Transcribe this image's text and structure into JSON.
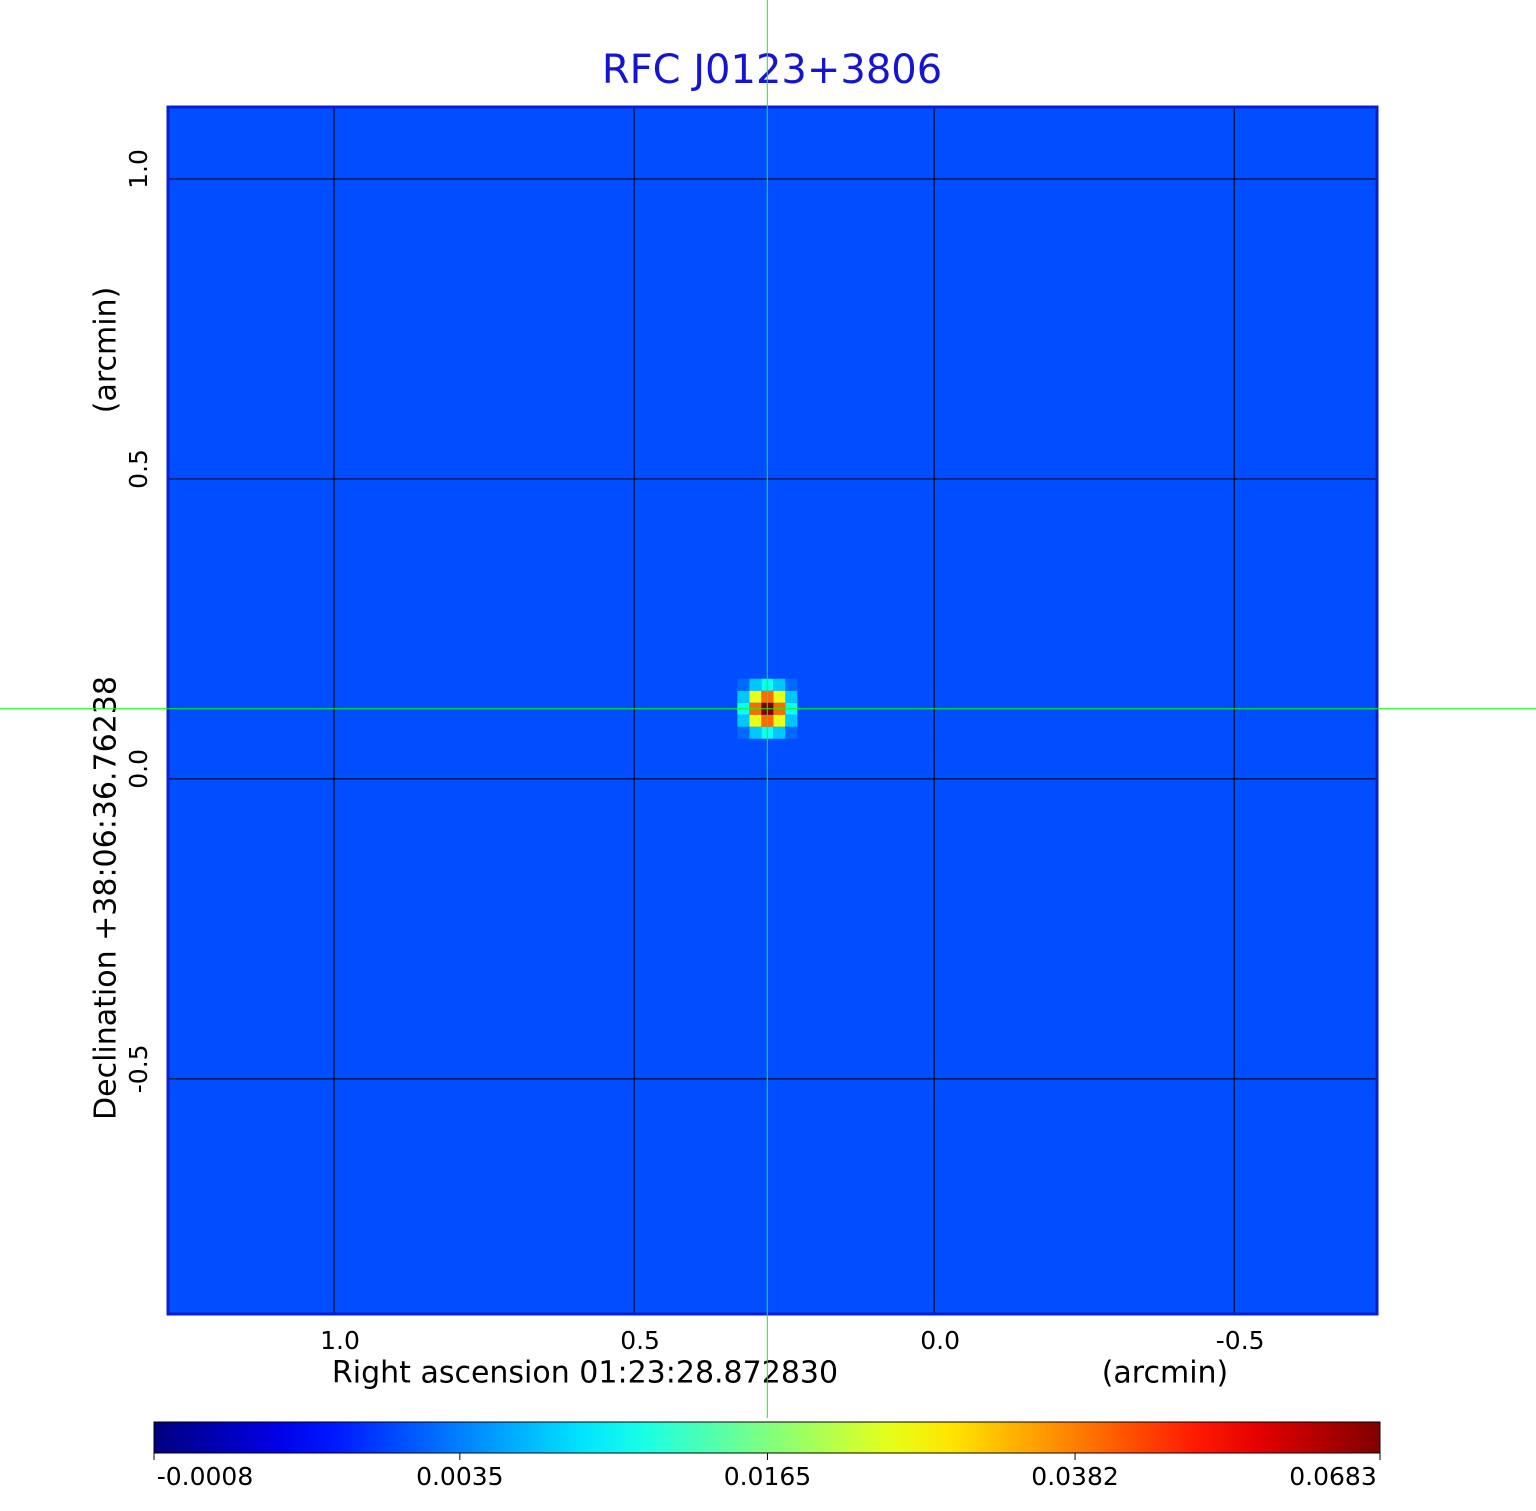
{
  "chart_data": {
    "type": "image",
    "title": "RFC J0123+3806",
    "x_label": "Right ascension  01:23:28.872830",
    "x_unit": "(arcmin)",
    "y_label": "Declination  +38:06:36.76238",
    "y_unit": "(arcmin)",
    "xlim": [
      1.2767,
      -0.738
    ],
    "ylim": [
      -0.892,
      1.12
    ],
    "xticks": [
      {
        "value": 1,
        "label": "1.0"
      },
      0.5,
      {
        "value": 0,
        "label": "0.0"
      },
      -0.5
    ],
    "yticks": [
      -0.5,
      {
        "value": 0,
        "label": "0.0"
      },
      0.5,
      {
        "value": 1,
        "label": "1.0"
      }
    ],
    "grid": true,
    "colormap": "jet",
    "crosshair": {
      "x": 0.278,
      "y": 0.117,
      "color": "#00ff00"
    },
    "image": {
      "background_level": 0.002,
      "pixel_size": 0.02,
      "source": {
        "x": 0.278,
        "y": 0.117,
        "peak": 0.0683,
        "fwhm": 0.045
      }
    },
    "colorbar": {
      "scale": "sqrt",
      "lim": [
        -0.0008,
        0.0683
      ],
      "ticks": [
        -0.0008,
        0.0035,
        0.0165,
        0.0382,
        0.0683
      ]
    }
  }
}
